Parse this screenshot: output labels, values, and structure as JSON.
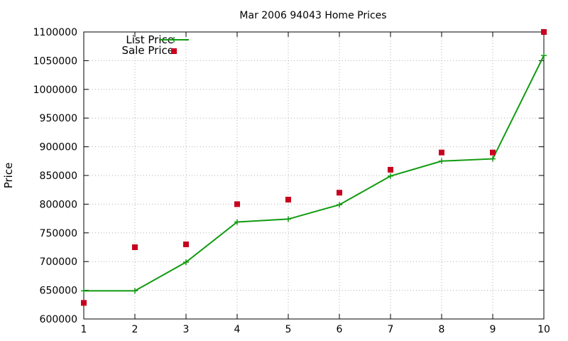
{
  "chart_data": {
    "type": "line",
    "title": "Mar 2006 94043 Home Prices",
    "xlabel": "",
    "ylabel": "Price",
    "x": [
      1,
      2,
      3,
      4,
      5,
      6,
      7,
      8,
      9,
      10
    ],
    "xlim": [
      1,
      10
    ],
    "ylim": [
      600000,
      1100000
    ],
    "xticks": [
      "1",
      "2",
      "3",
      "4",
      "5",
      "6",
      "7",
      "8",
      "9",
      "10"
    ],
    "yticks": [
      "600000",
      "650000",
      "700000",
      "750000",
      "800000",
      "850000",
      "900000",
      "950000",
      "1000000",
      "1050000",
      "1100000"
    ],
    "grid": true,
    "legend_position": "top-left",
    "series": [
      {
        "name": "List Price",
        "style": "line-with-plus-markers",
        "color": "#109b10",
        "values": [
          649000,
          649000,
          699000,
          769000,
          774000,
          799000,
          849000,
          875000,
          879000,
          1059000
        ]
      },
      {
        "name": "Sale Price",
        "style": "square-markers",
        "color": "#c8001e",
        "values": [
          628000,
          725000,
          730000,
          800000,
          808000,
          820000,
          860000,
          890000,
          890000,
          1100000
        ]
      }
    ]
  }
}
